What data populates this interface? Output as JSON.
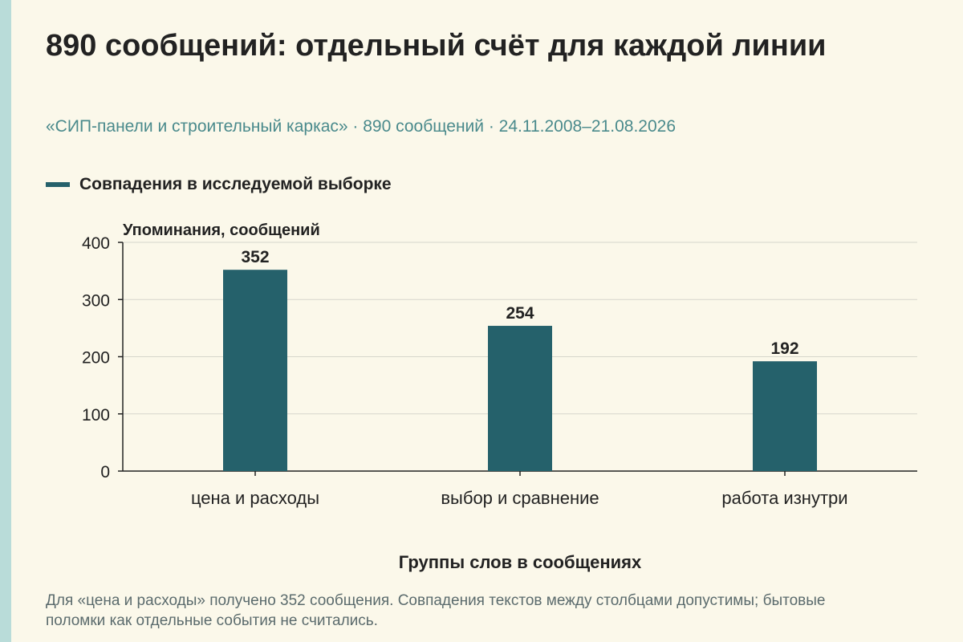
{
  "header": {
    "title": "890 сообщений: отдельный счёт для каждой линии",
    "subtitle": "«СИП-панели и строительный каркас» · 890 сообщений · 24.11.2008–21.08.2026"
  },
  "legend": {
    "label": "Совпадения в исследуемой выборке"
  },
  "chart_data": {
    "type": "bar",
    "categories": [
      "цена и расходы",
      "выбор и сравнение",
      "работа изнутри"
    ],
    "series": [
      {
        "name": "Совпадения в исследуемой выборке",
        "values": [
          352,
          254,
          192
        ]
      }
    ],
    "ylabel": "Упоминания, сообщений",
    "xlabel": "Группы слов в сообщениях",
    "ylim": [
      0,
      400
    ],
    "yticks": [
      0,
      100,
      200,
      300,
      400
    ],
    "grid": true,
    "legend_position": "top-left",
    "bar_color": "#25616b"
  },
  "footnote": "Для «цена и расходы» получено 352 сообщения. Совпадения текстов между столбцами допустимы; бытовые поломки как отдельные события не считались."
}
